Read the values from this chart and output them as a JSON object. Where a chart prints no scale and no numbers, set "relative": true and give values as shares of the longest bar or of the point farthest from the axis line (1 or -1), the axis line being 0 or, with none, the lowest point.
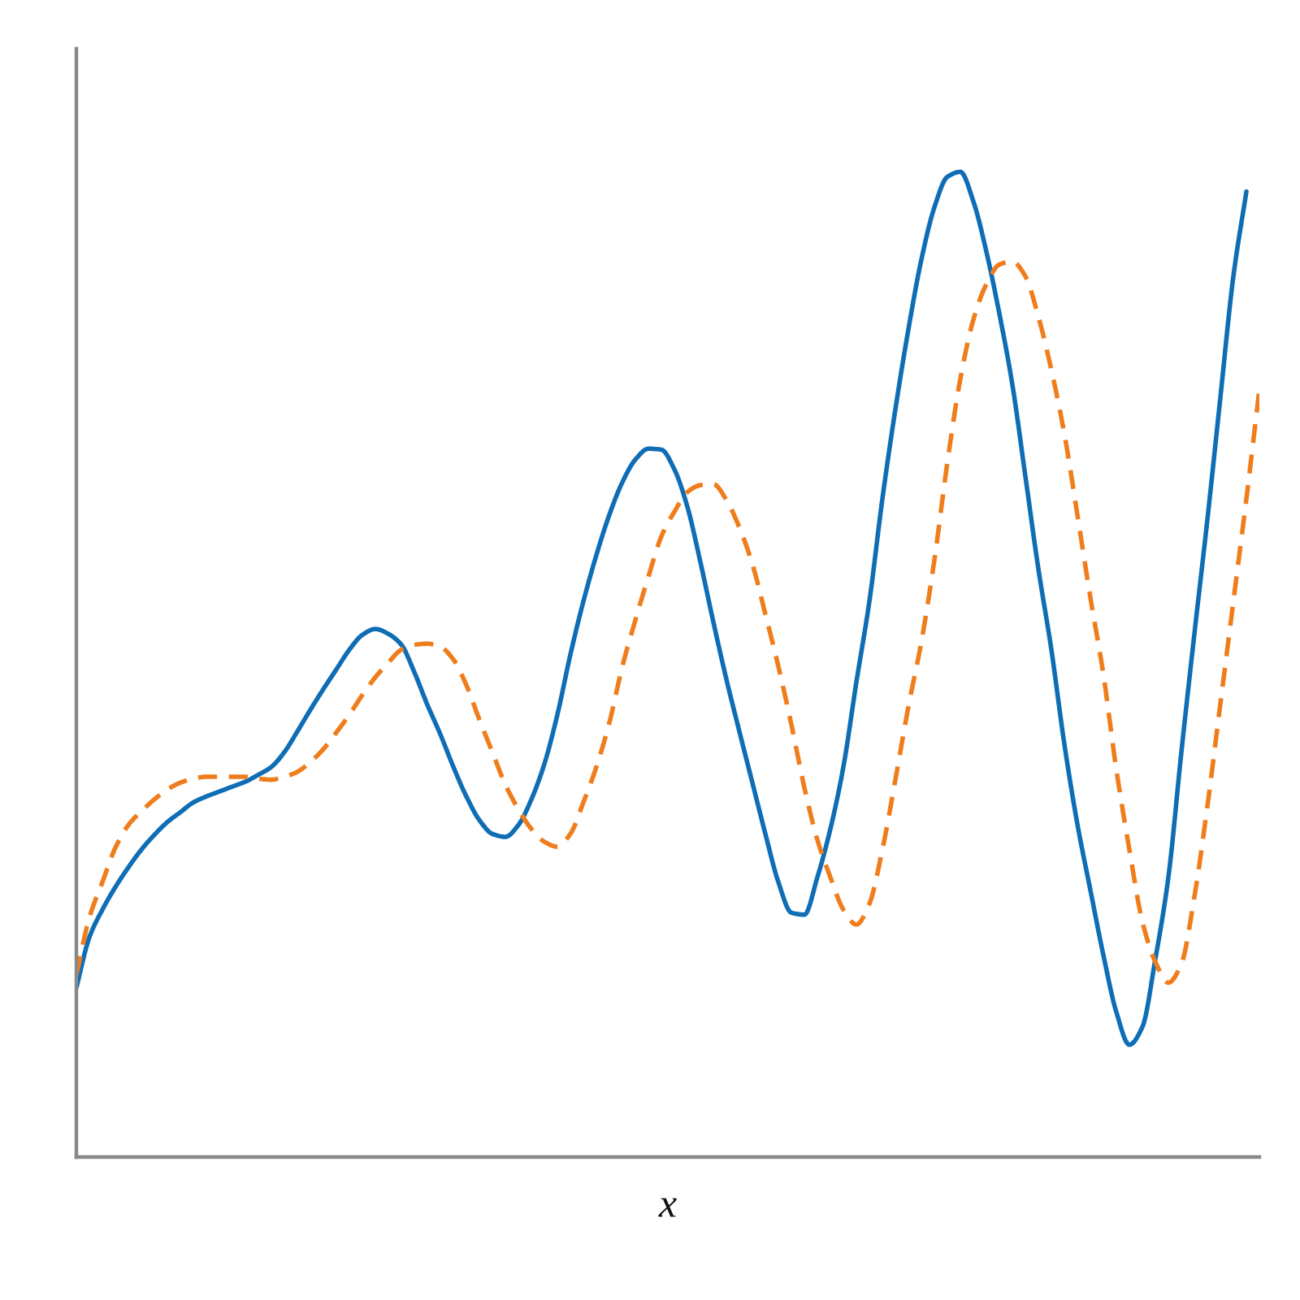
{
  "chart_data": {
    "type": "line",
    "relative": true,
    "xlabel": "x",
    "tick_labels": false,
    "marker": "none",
    "categories": [
      null,
      null,
      null,
      null,
      null,
      null,
      null,
      null,
      null,
      null,
      null,
      null,
      null,
      null,
      null,
      null,
      null,
      null,
      null,
      null,
      null,
      null,
      null,
      null,
      null,
      null,
      null,
      null,
      null,
      null,
      null,
      null,
      null,
      null,
      null,
      null,
      null,
      null,
      null,
      null,
      null,
      null,
      null,
      null,
      null,
      null,
      null,
      null,
      null,
      null,
      null,
      null,
      null,
      null,
      null,
      null,
      null,
      null,
      null,
      null,
      null,
      null,
      null,
      null,
      null,
      null,
      null,
      null,
      null,
      null,
      null,
      null,
      null,
      null,
      null,
      null,
      null,
      null,
      null,
      null,
      null,
      null,
      null,
      null,
      null,
      null,
      null,
      null,
      null,
      null,
      null,
      null
    ],
    "series": [
      {
        "color": "#0e6db5",
        "line_style": "solid",
        "values": [
          0.172,
          0.223,
          0.251,
          0.274,
          0.294,
          0.312,
          0.327,
          0.34,
          0.35,
          0.36,
          0.366,
          0.371,
          0.376,
          0.381,
          0.388,
          0.396,
          0.411,
          0.432,
          0.454,
          0.475,
          0.495,
          0.515,
          0.53,
          0.536,
          0.531,
          0.52,
          0.492,
          0.459,
          0.429,
          0.396,
          0.366,
          0.342,
          0.328,
          0.325,
          0.337,
          0.363,
          0.399,
          0.449,
          0.51,
          0.564,
          0.611,
          0.652,
          0.685,
          0.708,
          0.719,
          0.718,
          0.698,
          0.66,
          0.604,
          0.543,
          0.485,
          0.432,
          0.38,
          0.328,
          0.279,
          0.248,
          0.246,
          0.284,
          0.333,
          0.396,
          0.482,
          0.564,
          0.668,
          0.759,
          0.84,
          0.911,
          0.964,
          0.995,
          1.0,
          0.97,
          0.919,
          0.856,
          0.784,
          0.691,
          0.597,
          0.515,
          0.419,
          0.338,
          0.271,
          0.205,
          0.147,
          0.114,
          0.132,
          0.201,
          0.284,
          0.411,
          0.531,
          0.647,
          0.771,
          0.894,
          0.98,
          null
        ]
      },
      {
        "color": "#f07d1c",
        "line_style": "dashed",
        "values": [
          0.185,
          0.243,
          0.279,
          0.314,
          0.337,
          0.351,
          0.363,
          0.373,
          0.38,
          0.384,
          0.386,
          0.386,
          0.386,
          0.386,
          0.384,
          0.383,
          0.386,
          0.391,
          0.401,
          0.414,
          0.431,
          0.449,
          0.469,
          0.487,
          0.502,
          0.515,
          0.52,
          0.521,
          0.518,
          0.505,
          0.479,
          0.444,
          0.411,
          0.378,
          0.353,
          0.333,
          0.32,
          0.315,
          0.328,
          0.36,
          0.396,
          0.441,
          0.498,
          0.545,
          0.589,
          0.63,
          0.655,
          0.675,
          0.682,
          0.683,
          0.667,
          0.639,
          0.602,
          0.551,
          0.498,
          0.439,
          0.375,
          0.322,
          0.284,
          0.251,
          0.236,
          0.257,
          0.312,
          0.383,
          0.457,
          0.523,
          0.606,
          0.705,
          0.79,
          0.85,
          0.886,
          0.906,
          0.909,
          0.894,
          0.853,
          0.799,
          0.734,
          0.652,
          0.568,
          0.49,
          0.393,
          0.312,
          0.239,
          0.198,
          0.177,
          0.196,
          0.264,
          0.356,
          0.46,
          0.564,
          0.668,
          0.779
        ]
      }
    ]
  }
}
